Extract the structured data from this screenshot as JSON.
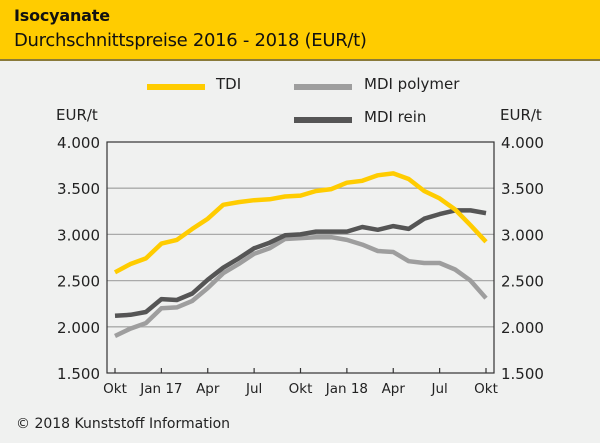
{
  "header": {
    "title": "Isocyanate",
    "subtitle": "Durchschnittspreise 2016 - 2018 (EUR/t)"
  },
  "footer": {
    "copyright": "© 2018 Kunststoff Information"
  },
  "colors": {
    "header_bg": "#ffcc00",
    "tdi": "#ffcc00",
    "mdi_polymer": "#9e9e9e",
    "mdi_rein": "#555555",
    "grid": "#aaaaaa",
    "axis": "#333333"
  },
  "chart_data": {
    "type": "line",
    "title": "Isocyanate",
    "subtitle": "Durchschnittspreise 2016 - 2018 (EUR/t)",
    "xlabel": "",
    "ylabel": "EUR/t",
    "ylabel_right": "EUR/t",
    "ylim": [
      1500,
      4000
    ],
    "yticks": [
      1500,
      2000,
      2500,
      3000,
      3500,
      4000
    ],
    "ytick_labels": [
      "1.500",
      "2.000",
      "2.500",
      "3.000",
      "3.500",
      "4.000"
    ],
    "grid": true,
    "legend_position": "top",
    "x": [
      "2016-10",
      "2016-11",
      "2016-12",
      "2017-01",
      "2017-02",
      "2017-03",
      "2017-04",
      "2017-05",
      "2017-06",
      "2017-07",
      "2017-08",
      "2017-09",
      "2017-10",
      "2017-11",
      "2017-12",
      "2018-01",
      "2018-02",
      "2018-03",
      "2018-04",
      "2018-05",
      "2018-06",
      "2018-07",
      "2018-08",
      "2018-09",
      "2018-10"
    ],
    "xticks": [
      {
        "index": 0,
        "label": "Okt"
      },
      {
        "index": 3,
        "label": "Jan 17"
      },
      {
        "index": 6,
        "label": "Apr"
      },
      {
        "index": 9,
        "label": "Jul"
      },
      {
        "index": 12,
        "label": "Okt"
      },
      {
        "index": 15,
        "label": "Jan 18"
      },
      {
        "index": 18,
        "label": "Apr"
      },
      {
        "index": 21,
        "label": "Jul"
      },
      {
        "index": 24,
        "label": "Okt"
      }
    ],
    "series": [
      {
        "name": "TDI",
        "key": "tdi",
        "values": [
          2590,
          2680,
          2740,
          2900,
          2940,
          3060,
          3170,
          3320,
          3350,
          3370,
          3380,
          3410,
          3420,
          3470,
          3490,
          3560,
          3580,
          3640,
          3660,
          3600,
          3470,
          3390,
          3270,
          3100,
          2920
        ]
      },
      {
        "name": "MDI polymer",
        "key": "mdi_polymer",
        "values": [
          1900,
          1980,
          2040,
          2200,
          2210,
          2280,
          2420,
          2580,
          2680,
          2790,
          2850,
          2950,
          2960,
          2970,
          2970,
          2940,
          2890,
          2820,
          2810,
          2710,
          2690,
          2690,
          2620,
          2500,
          2310
        ]
      },
      {
        "name": "MDI rein",
        "key": "mdi_rein",
        "values": [
          2120,
          2130,
          2160,
          2300,
          2290,
          2360,
          2510,
          2640,
          2740,
          2850,
          2910,
          2990,
          3000,
          3030,
          3030,
          3030,
          3080,
          3050,
          3090,
          3060,
          3170,
          3220,
          3260,
          3260,
          3230
        ]
      }
    ]
  }
}
